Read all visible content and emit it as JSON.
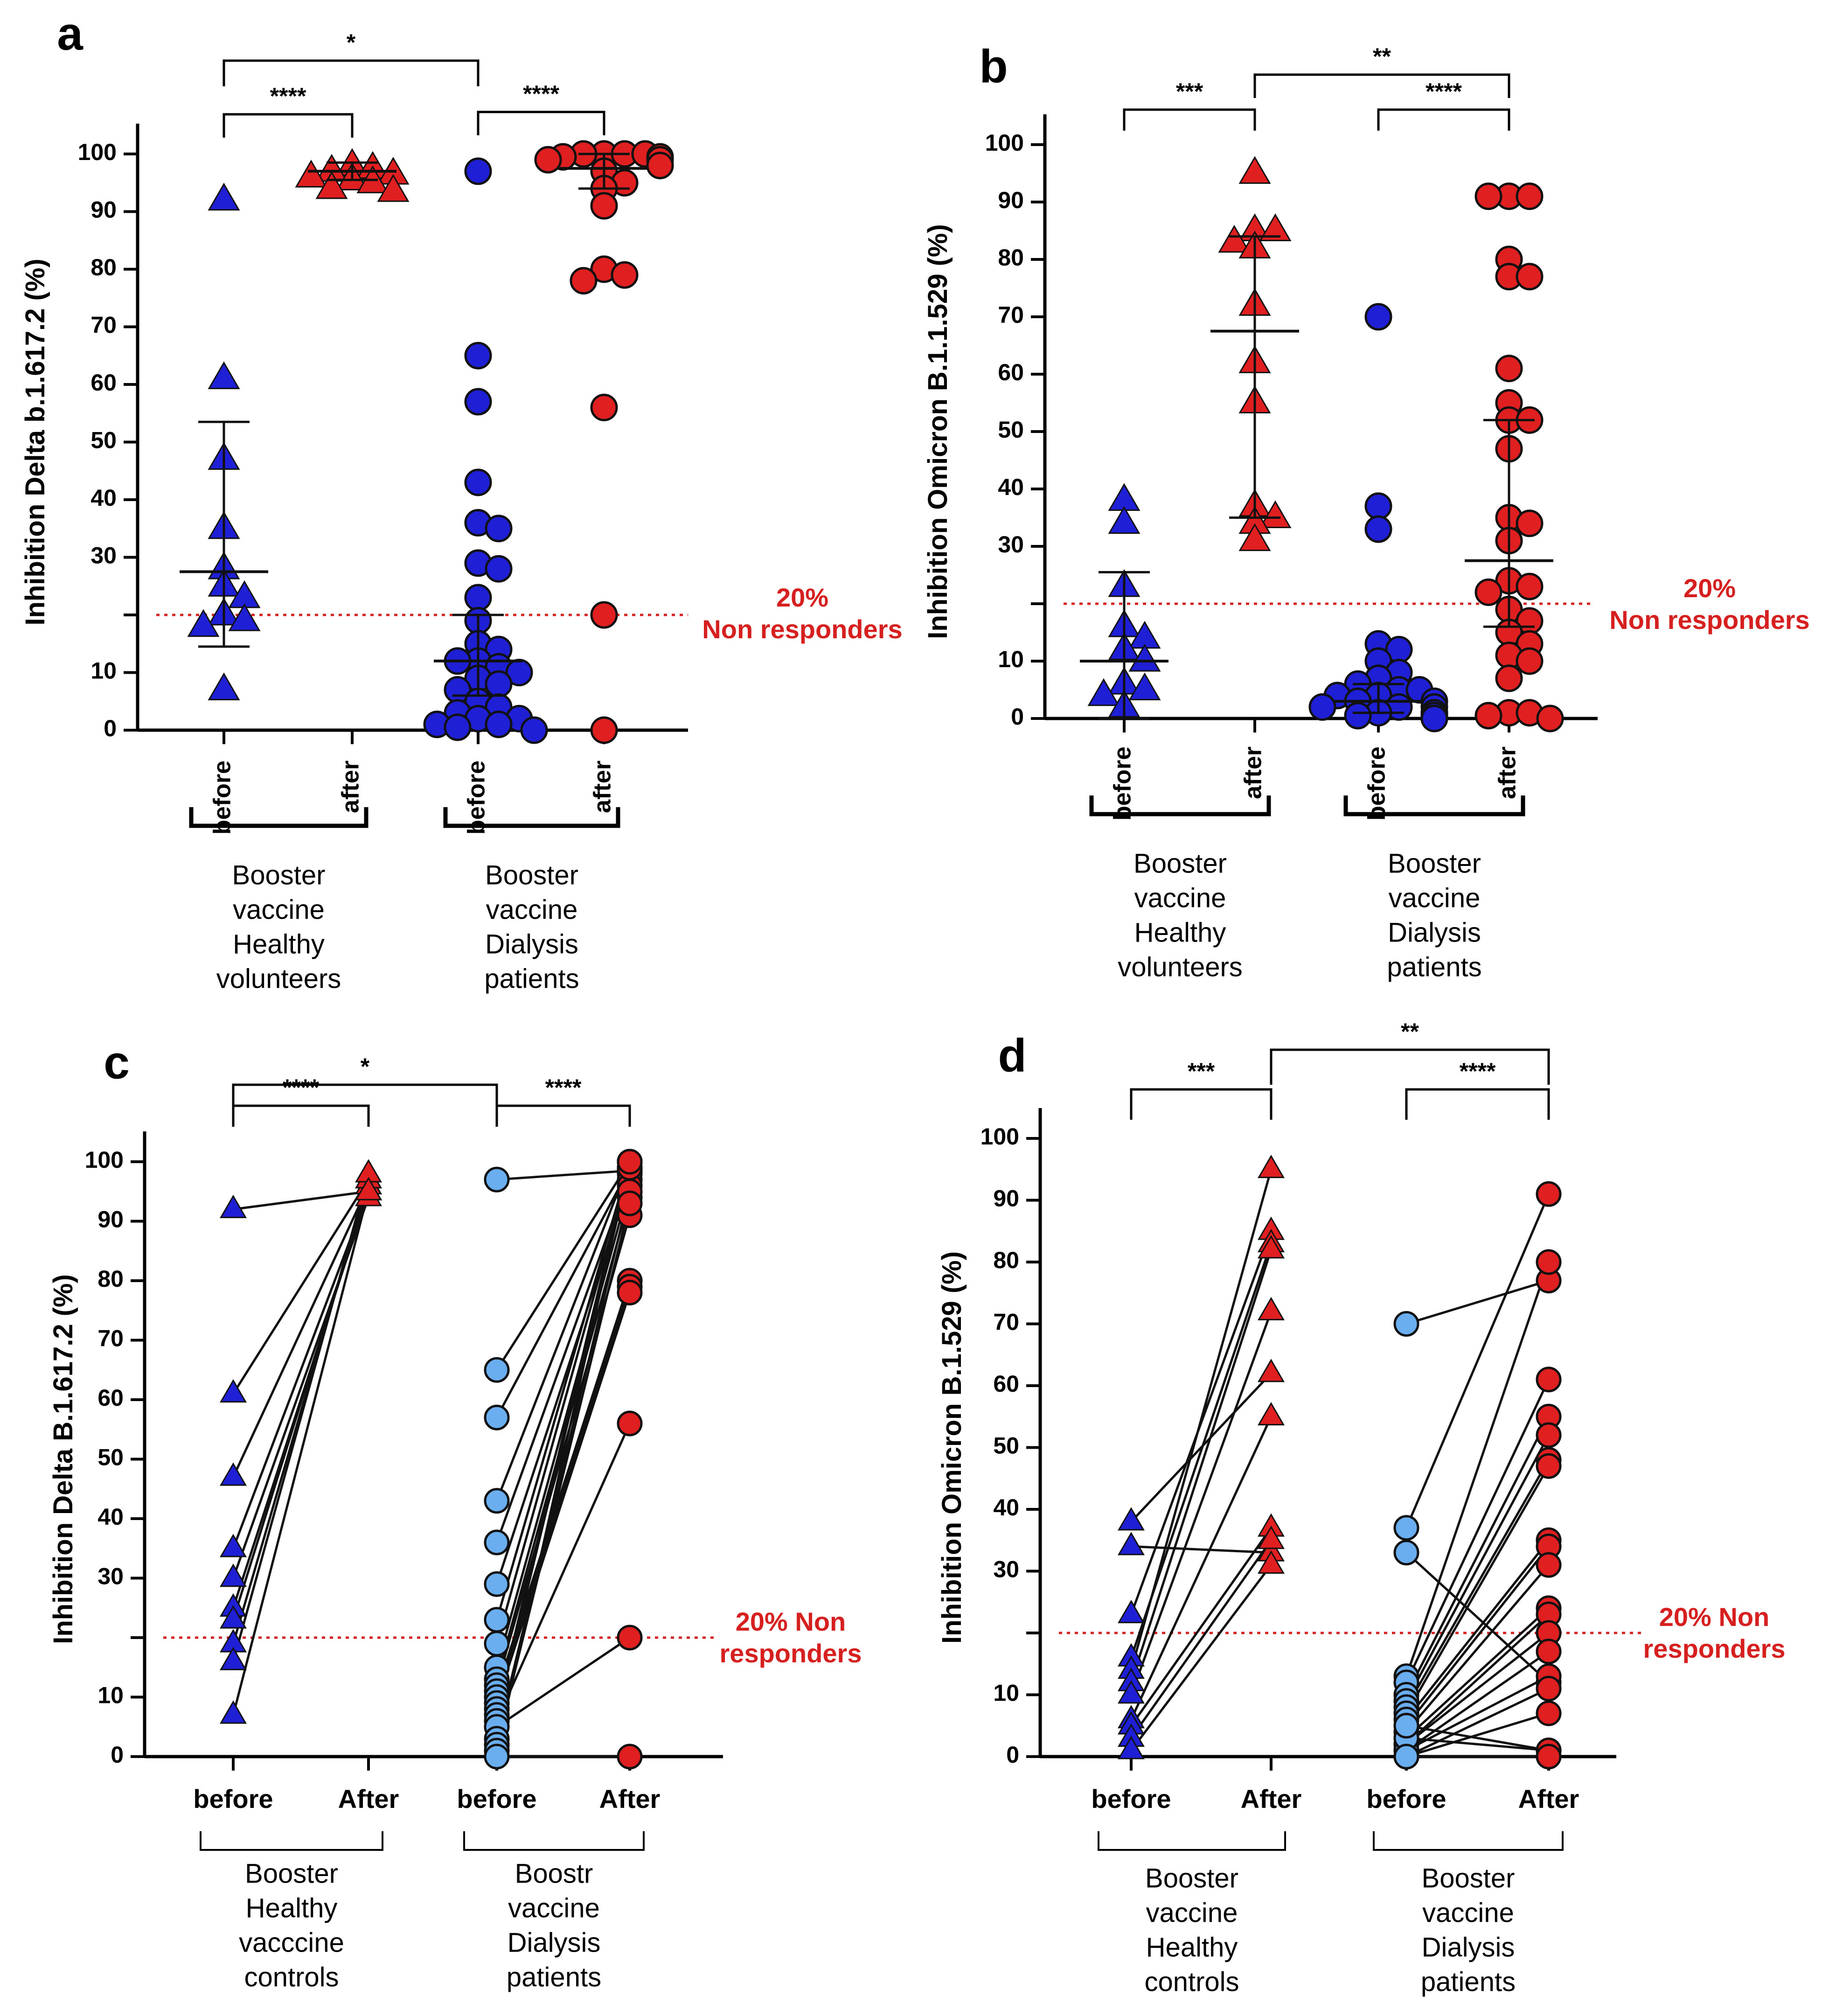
{
  "figure": {
    "chart_data": [
      {
        "id": "a",
        "type": "scatter",
        "panel_label": "a",
        "ylabel": "Inhibition Delta b.1.617.2 (%)",
        "ylim": [
          0,
          100
        ],
        "yticks": [
          0,
          10,
          30,
          40,
          50,
          60,
          70,
          80,
          90,
          100
        ],
        "threshold": 20,
        "threshold_text": [
          "20%",
          "Non responders"
        ],
        "threshold_color": "#d62020",
        "categories": [
          "before",
          "after",
          "before",
          "after"
        ],
        "group_labels": [
          [
            "Booster",
            "vaccine",
            "Healthy",
            "volunteers"
          ],
          [
            "Booster",
            "vaccine",
            "Dialysis",
            "patients"
          ]
        ],
        "sig_brackets": [
          {
            "from": 0,
            "to": 1,
            "label": "****"
          },
          {
            "from": 2,
            "to": 3,
            "label": "****"
          },
          {
            "from": 0,
            "to": 2,
            "label": "*"
          }
        ],
        "series": [
          {
            "name": "before",
            "marker": "triangle",
            "color": "#1f1fd6",
            "values": [
              92,
              61,
              47,
              35,
              28,
              25,
              23,
              20,
              19,
              18,
              7
            ],
            "mean": 27.5,
            "error": [
              14.5,
              53.5
            ]
          },
          {
            "name": "after",
            "marker": "triangle",
            "color": "#e02020",
            "values": [
              98,
              97.5,
              97,
              96.5,
              96,
              95.5,
              95,
              94,
              93.5
            ],
            "mean": 97,
            "error": [
              95.5,
              98.5
            ]
          },
          {
            "name": "before",
            "marker": "circle",
            "color": "#1f1fd6",
            "values": [
              97,
              65,
              57,
              43,
              36,
              35,
              29,
              28,
              23,
              19,
              15,
              14,
              12,
              12,
              11,
              10,
              9,
              8,
              7,
              5,
              4,
              3,
              2,
              2,
              1,
              1,
              0.5,
              0
            ],
            "mean": 12,
            "error": [
              6,
              20
            ]
          },
          {
            "name": "after",
            "marker": "circle",
            "color": "#e02020",
            "values": [
              100,
              100,
              100,
              100,
              99.5,
              99.5,
              99,
              99,
              98,
              98,
              97,
              95,
              94,
              91,
              80,
              79,
              78,
              56,
              20,
              0
            ],
            "mean": 97.5,
            "error": [
              94,
              100
            ]
          }
        ]
      },
      {
        "id": "b",
        "type": "scatter",
        "panel_label": "b",
        "ylabel": "Inhibition Omicron B.1.1.529 (%)",
        "ylim": [
          0,
          100
        ],
        "yticks": [
          0,
          10,
          30,
          40,
          50,
          60,
          70,
          80,
          90,
          100
        ],
        "threshold": 20,
        "threshold_text": [
          "20%",
          "Non responders"
        ],
        "threshold_color": "#d62020",
        "categories": [
          "before",
          "after",
          "before",
          "after"
        ],
        "group_labels": [
          [
            "Booster",
            "vaccine",
            "Healthy",
            "volunteers"
          ],
          [
            "Booster",
            "vaccine",
            "Dialysis",
            "patients"
          ]
        ],
        "sig_brackets": [
          {
            "from": 0,
            "to": 1,
            "label": "***"
          },
          {
            "from": 2,
            "to": 3,
            "label": "****"
          },
          {
            "from": 1,
            "to": 3,
            "label": "**"
          }
        ],
        "series": [
          {
            "name": "before",
            "marker": "triangle",
            "color": "#1f1fd6",
            "values": [
              38,
              34,
              23,
              16,
              14,
              12,
              10,
              6,
              5,
              4,
              2
            ],
            "mean": 10,
            "error": [
              0,
              25.5
            ]
          },
          {
            "name": "after",
            "marker": "triangle",
            "color": "#e02020",
            "values": [
              95,
              85,
              85,
              83,
              82,
              72,
              62,
              55,
              37,
              35,
              34,
              31
            ],
            "mean": 67.5,
            "error": [
              35,
              84
            ]
          },
          {
            "name": "before",
            "marker": "circle",
            "color": "#1f1fd6",
            "values": [
              70,
              37,
              33,
              13,
              12,
              10,
              8,
              7,
              6,
              5,
              5,
              4,
              4,
              3,
              3,
              2,
              2,
              2,
              1,
              1,
              1,
              0.5,
              0.5,
              0
            ],
            "mean": 3,
            "error": [
              1,
              6
            ]
          },
          {
            "name": "after",
            "marker": "circle",
            "color": "#e02020",
            "values": [
              91,
              91,
              91,
              80,
              77,
              77,
              61,
              55,
              52,
              52,
              47,
              35,
              34,
              31,
              24,
              23,
              22,
              19,
              17,
              15,
              13,
              11,
              10,
              7,
              1,
              1,
              0.5,
              0
            ],
            "mean": 27.5,
            "error": [
              16,
              52
            ]
          }
        ]
      },
      {
        "id": "c",
        "type": "line",
        "panel_label": "c",
        "ylabel": "Inhibition Delta B.1.617.2 (%)",
        "ylim": [
          0,
          100
        ],
        "yticks": [
          0,
          10,
          30,
          40,
          50,
          60,
          70,
          80,
          90,
          100
        ],
        "threshold": 20,
        "threshold_text": [
          "20% Non",
          "responders"
        ],
        "threshold_color": "#d62020",
        "categories": [
          "before",
          "After",
          "before",
          "After"
        ],
        "group_labels": [
          [
            "Booster",
            "Healthy",
            "vacccine",
            "controls"
          ],
          [
            "Boostr",
            "vaccine",
            "Dialysis",
            "patients"
          ]
        ],
        "sig_brackets": [
          {
            "from": 0,
            "to": 1,
            "label": "****"
          },
          {
            "from": 2,
            "to": 3,
            "label": "****"
          },
          {
            "from": 0,
            "to": 2,
            "label": "*"
          }
        ],
        "paired_series": [
          {
            "name": "Healthy",
            "marker": "triangle",
            "before_color": "#1f1fd6",
            "after_color": "#e02020",
            "pairs": [
              [
                92,
                95
              ],
              [
                61,
                97
              ],
              [
                47,
                96
              ],
              [
                35,
                95
              ],
              [
                30,
                94
              ],
              [
                25,
                95
              ],
              [
                23,
                96
              ],
              [
                19,
                97
              ],
              [
                16,
                98
              ],
              [
                7,
                95
              ]
            ]
          },
          {
            "name": "Dialysis",
            "marker": "circle",
            "before_color": "#6aaef0",
            "after_color": "#e02020",
            "pairs": [
              [
                97,
                98.5
              ],
              [
                65,
                100
              ],
              [
                57,
                99
              ],
              [
                43,
                100
              ],
              [
                36,
                98
              ],
              [
                29,
                97
              ],
              [
                23,
                100
              ],
              [
                19,
                99
              ],
              [
                15,
                96
              ],
              [
                13,
                94
              ],
              [
                12,
                91
              ],
              [
                11,
                80
              ],
              [
                10,
                79
              ],
              [
                9,
                78
              ],
              [
                8,
                100
              ],
              [
                7,
                99
              ],
              [
                6,
                56
              ],
              [
                5,
                20
              ],
              [
                3,
                95
              ],
              [
                2,
                93
              ],
              [
                1,
                100
              ],
              [
                0,
                0
              ]
            ]
          }
        ]
      },
      {
        "id": "d",
        "type": "line",
        "panel_label": "d",
        "ylabel": "Inhibition Omicron B.1.529 (%)",
        "ylim": [
          0,
          100
        ],
        "yticks": [
          0,
          10,
          30,
          40,
          50,
          60,
          70,
          80,
          90,
          100
        ],
        "threshold": 20,
        "threshold_text": [
          "20% Non",
          "responders"
        ],
        "threshold_color": "#d62020",
        "categories": [
          "before",
          "After",
          "before",
          "After"
        ],
        "group_labels": [
          [
            "Booster",
            "vaccine",
            "Healthy",
            "controls"
          ],
          [
            "Booster",
            "vaccine",
            "Dialysis",
            "patients"
          ]
        ],
        "sig_brackets": [
          {
            "from": 0,
            "to": 1,
            "label": "***"
          },
          {
            "from": 2,
            "to": 3,
            "label": "****"
          },
          {
            "from": 1,
            "to": 3,
            "label": "**"
          }
        ],
        "paired_series": [
          {
            "name": "Healthy",
            "marker": "triangle",
            "before_color": "#1f1fd6",
            "after_color": "#e02020",
            "pairs": [
              [
                38,
                62
              ],
              [
                34,
                33
              ],
              [
                23,
                85
              ],
              [
                16,
                83
              ],
              [
                14,
                95
              ],
              [
                12,
                82
              ],
              [
                10,
                72
              ],
              [
                6,
                55
              ],
              [
                5,
                37
              ],
              [
                3,
                35
              ],
              [
                1,
                31
              ]
            ]
          },
          {
            "name": "Dialysis",
            "marker": "circle",
            "before_color": "#6aaef0",
            "after_color": "#e02020",
            "pairs": [
              [
                70,
                77
              ],
              [
                37,
                91
              ],
              [
                33,
                12
              ],
              [
                13,
                80
              ],
              [
                12,
                61
              ],
              [
                10,
                55
              ],
              [
                9,
                52
              ],
              [
                8,
                48
              ],
              [
                7,
                47
              ],
              [
                6,
                35
              ],
              [
                5,
                34
              ],
              [
                4,
                31
              ],
              [
                3,
                24
              ],
              [
                2,
                23
              ],
              [
                2,
                20
              ],
              [
                1,
                17
              ],
              [
                1,
                13
              ],
              [
                0,
                11
              ],
              [
                0,
                7
              ],
              [
                3,
                1
              ],
              [
                5,
                1
              ],
              [
                0,
                0
              ]
            ]
          }
        ]
      }
    ]
  }
}
